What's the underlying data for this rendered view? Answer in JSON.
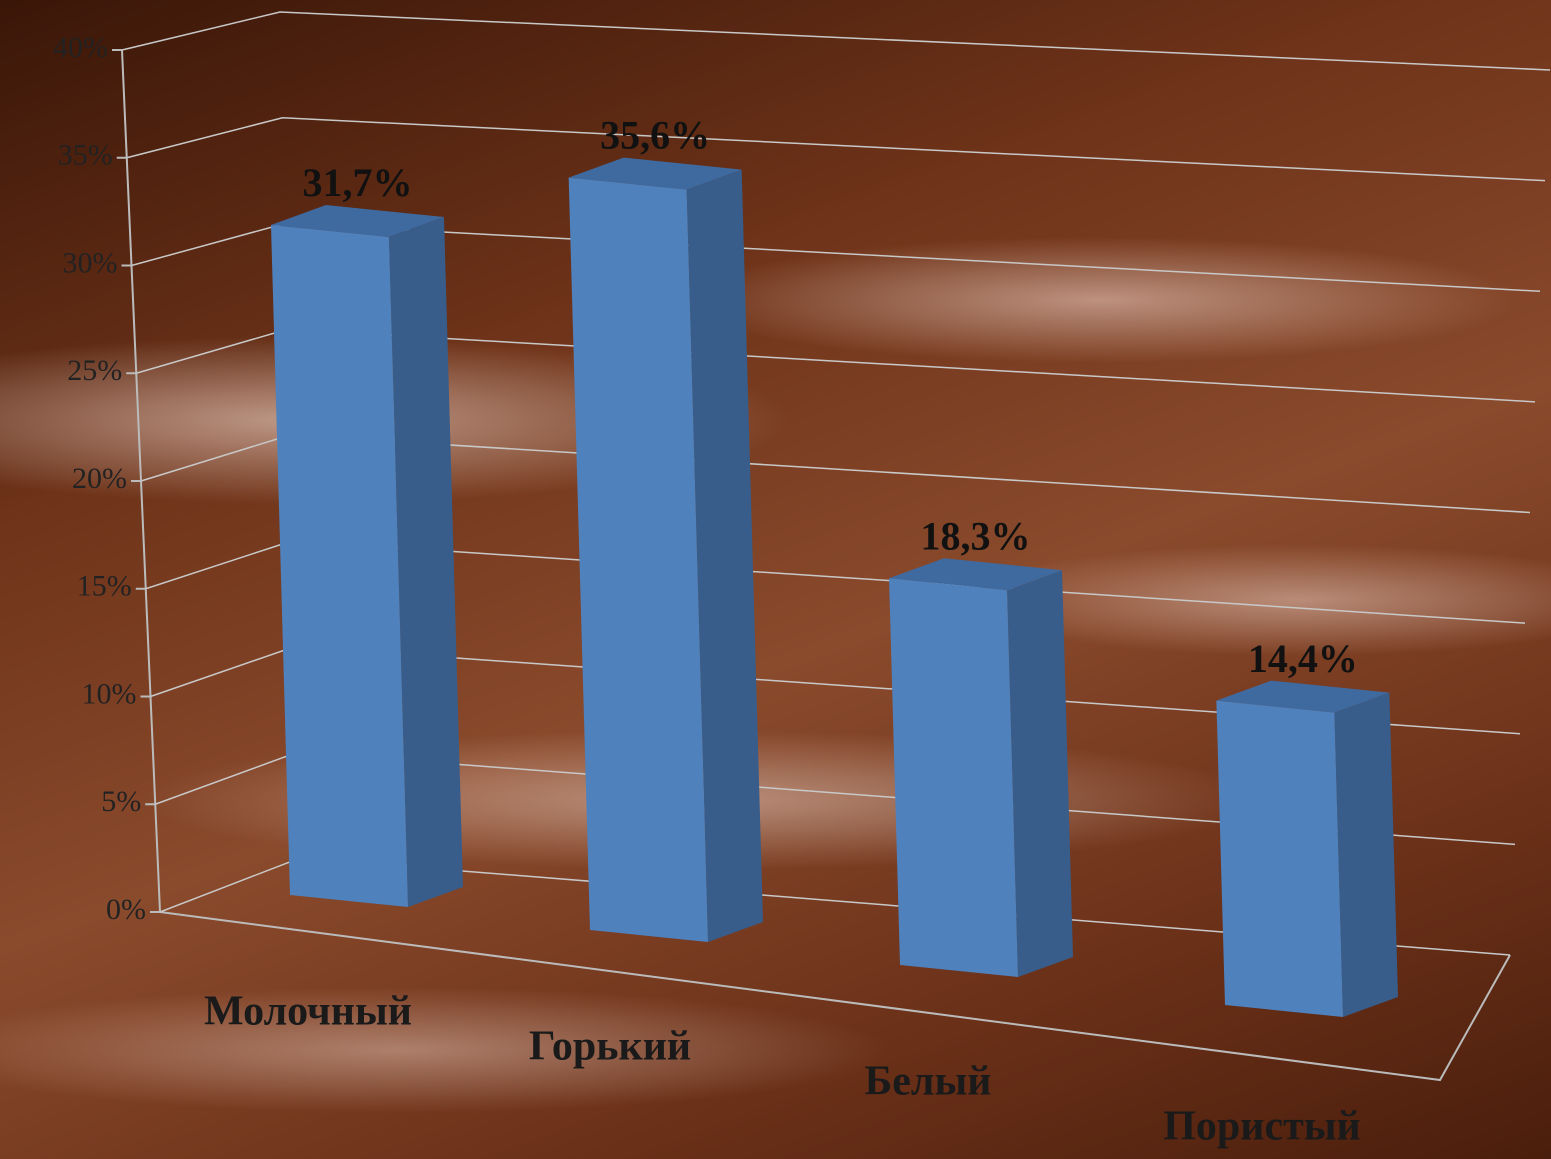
{
  "chart_data": {
    "type": "bar3d",
    "categories": [
      "Молочный",
      "Горький",
      "Белый",
      "Пористый"
    ],
    "values": [
      31.7,
      35.6,
      18.3,
      14.4
    ],
    "value_labels": [
      "31,7%",
      "35,6%",
      "18,3%",
      "14,4%"
    ],
    "color": "#4f81bd",
    "ylim": [
      0,
      40
    ],
    "yticks": [
      {
        "value": 0,
        "label": "0%"
      },
      {
        "value": 5,
        "label": "5%"
      },
      {
        "value": 10,
        "label": "10%"
      },
      {
        "value": 15,
        "label": "15%"
      },
      {
        "value": 20,
        "label": "20%"
      },
      {
        "value": 25,
        "label": "25%"
      },
      {
        "value": 30,
        "label": "30%"
      },
      {
        "value": 35,
        "label": "35%"
      },
      {
        "value": 40,
        "label": "40%"
      }
    ],
    "grid": true
  }
}
